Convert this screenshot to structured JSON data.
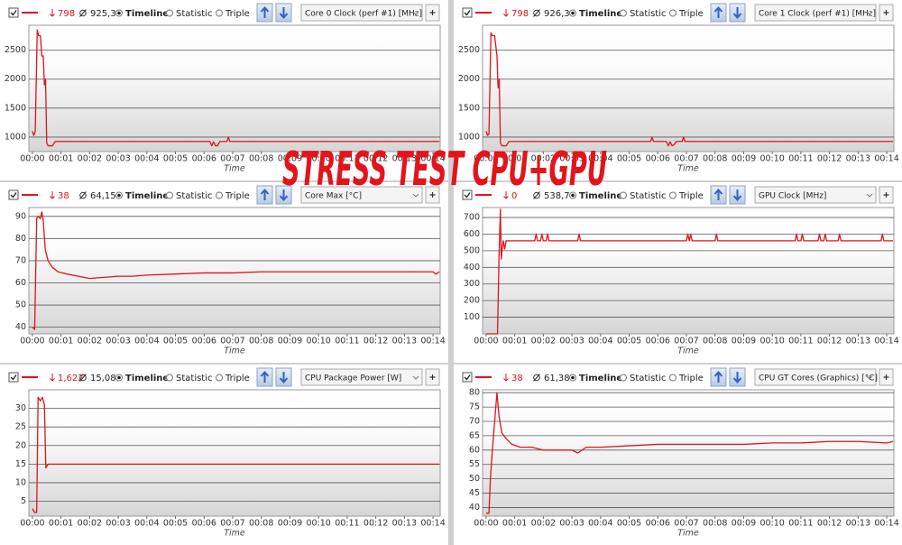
{
  "modes": [
    "Timeline",
    "Statistic",
    "Triple"
  ],
  "overlay": "STRESS TEST CPU+GPU",
  "chart_data": [
    {
      "type": "line",
      "title": "Core 0 Clock (perf #1) [MHz]",
      "min": "798",
      "avg": "925,3",
      "xlabel": "Time",
      "color": "#e0141b",
      "grid": true,
      "xlim": [
        -0.06,
        14.25
      ],
      "ylim": [
        750,
        2930
      ],
      "yticks": [
        1000,
        1500,
        2000,
        2500
      ],
      "xticks": [
        {
          "value": 0,
          "label": "00:00"
        },
        {
          "value": 1,
          "label": "00:01"
        },
        {
          "value": 2,
          "label": "00:02"
        },
        {
          "value": 3,
          "label": "00:03"
        },
        {
          "value": 4,
          "label": "00:04"
        },
        {
          "value": 5,
          "label": "00:05"
        },
        {
          "value": 6,
          "label": "00:06"
        },
        {
          "value": 7,
          "label": "00:07"
        },
        {
          "value": 8,
          "label": "00:08"
        },
        {
          "value": 9,
          "label": "00:09"
        },
        {
          "value": 10,
          "label": "00:10"
        },
        {
          "value": 11,
          "label": "00:11"
        },
        {
          "value": 12,
          "label": "00:12"
        },
        {
          "value": 13,
          "label": "00:13"
        },
        {
          "value": 14,
          "label": "00:14"
        }
      ],
      "x": [
        0,
        0.05,
        0.1,
        0.17,
        0.22,
        0.28,
        0.33,
        0.38,
        0.42,
        0.46,
        0.5,
        0.55,
        0.7,
        0.8,
        0.9,
        6.2,
        6.27,
        6.33,
        6.4,
        6.47,
        6.55,
        6.8,
        6.85,
        6.9,
        14.22
      ],
      "values": [
        1100,
        1030,
        1100,
        2850,
        2750,
        2750,
        2400,
        2400,
        1900,
        2000,
        900,
        850,
        850,
        925,
        925,
        925,
        850,
        920,
        850,
        850,
        925,
        925,
        1000,
        925,
        925
      ]
    },
    {
      "type": "line",
      "title": "Core 1 Clock (perf #1) [MHz]",
      "min": "798",
      "avg": "926,3",
      "xlabel": "Time",
      "color": "#e0141b",
      "grid": true,
      "xlim": [
        -0.06,
        14.25
      ],
      "ylim": [
        750,
        2930
      ],
      "yticks": [
        1000,
        1500,
        2000,
        2500
      ],
      "xticks": [
        {
          "value": 0,
          "label": "00:00"
        },
        {
          "value": 1,
          "label": "00:01"
        },
        {
          "value": 2,
          "label": "00:02"
        },
        {
          "value": 3,
          "label": "00:03"
        },
        {
          "value": 4,
          "label": "00:04"
        },
        {
          "value": 5,
          "label": "00:05"
        },
        {
          "value": 6,
          "label": "00:06"
        },
        {
          "value": 7,
          "label": "00:07"
        },
        {
          "value": 8,
          "label": "00:08"
        },
        {
          "value": 9,
          "label": "00:09"
        },
        {
          "value": 10,
          "label": "00:10"
        },
        {
          "value": 11,
          "label": "00:11"
        },
        {
          "value": 12,
          "label": "00:12"
        },
        {
          "value": 13,
          "label": "00:13"
        },
        {
          "value": 14,
          "label": "00:14"
        }
      ],
      "x": [
        0,
        0.05,
        0.1,
        0.17,
        0.22,
        0.3,
        0.38,
        0.42,
        0.46,
        0.5,
        0.55,
        0.7,
        0.8,
        0.9,
        5.75,
        5.8,
        5.85,
        6.3,
        6.37,
        6.43,
        6.5,
        6.57,
        6.65,
        6.85,
        6.9,
        6.95,
        14.22
      ],
      "values": [
        1100,
        1030,
        1050,
        2800,
        2750,
        2750,
        2400,
        1850,
        2000,
        900,
        850,
        850,
        925,
        925,
        925,
        1000,
        925,
        925,
        850,
        920,
        850,
        870,
        925,
        925,
        1000,
        925,
        925
      ]
    },
    {
      "type": "line",
      "title": "Core Max [°C]",
      "min": "38",
      "avg": "64,15",
      "xlabel": "Time",
      "color": "#e0141b",
      "grid": true,
      "xlim": [
        -0.06,
        14.25
      ],
      "ylim": [
        37,
        94
      ],
      "yticks": [
        40,
        50,
        60,
        70,
        80,
        90
      ],
      "xticks": [
        {
          "value": 0,
          "label": "00:00"
        },
        {
          "value": 1,
          "label": "00:01"
        },
        {
          "value": 2,
          "label": "00:02"
        },
        {
          "value": 3,
          "label": "00:03"
        },
        {
          "value": 4,
          "label": "00:04"
        },
        {
          "value": 5,
          "label": "00:05"
        },
        {
          "value": 6,
          "label": "00:06"
        },
        {
          "value": 7,
          "label": "00:07"
        },
        {
          "value": 8,
          "label": "00:08"
        },
        {
          "value": 9,
          "label": "00:09"
        },
        {
          "value": 10,
          "label": "00:10"
        },
        {
          "value": 11,
          "label": "00:11"
        },
        {
          "value": 12,
          "label": "00:12"
        },
        {
          "value": 13,
          "label": "00:13"
        },
        {
          "value": 14,
          "label": "00:14"
        }
      ],
      "x": [
        0,
        0.08,
        0.15,
        0.2,
        0.28,
        0.33,
        0.38,
        0.45,
        0.55,
        0.7,
        0.9,
        1.2,
        1.6,
        2,
        2.5,
        3,
        3.5,
        4,
        5,
        6,
        7,
        8,
        9,
        10,
        11,
        12,
        13,
        14,
        14.1,
        14.22
      ],
      "values": [
        40,
        39,
        89,
        90,
        89,
        92,
        88,
        75,
        70,
        67,
        65,
        64,
        63,
        62,
        62.5,
        63,
        63,
        63.5,
        64,
        64.5,
        64.5,
        65,
        65,
        65,
        65,
        65,
        65,
        65,
        64,
        65
      ]
    },
    {
      "type": "line",
      "title": "GPU Clock [MHz]",
      "min": "0",
      "avg": "538,7",
      "xlabel": "Time",
      "color": "#e0141b",
      "grid": true,
      "xlim": [
        -0.06,
        14.25
      ],
      "ylim": [
        0,
        760
      ],
      "yticks": [
        100,
        200,
        300,
        400,
        500,
        600,
        700
      ],
      "xticks": [
        {
          "value": 0,
          "label": "00:00"
        },
        {
          "value": 1,
          "label": "00:01"
        },
        {
          "value": 2,
          "label": "00:02"
        },
        {
          "value": 3,
          "label": "00:03"
        },
        {
          "value": 4,
          "label": "00:04"
        },
        {
          "value": 5,
          "label": "00:05"
        },
        {
          "value": 6,
          "label": "00:06"
        },
        {
          "value": 7,
          "label": "00:07"
        },
        {
          "value": 8,
          "label": "00:08"
        },
        {
          "value": 9,
          "label": "00:09"
        },
        {
          "value": 10,
          "label": "00:10"
        },
        {
          "value": 11,
          "label": "00:11"
        },
        {
          "value": 12,
          "label": "00:12"
        },
        {
          "value": 13,
          "label": "00:13"
        },
        {
          "value": 14,
          "label": "00:14"
        }
      ],
      "x": [
        0,
        0.4,
        0.45,
        0.5,
        0.53,
        0.57,
        0.6,
        0.65,
        0.7,
        1.7,
        1.75,
        1.8,
        1.9,
        1.95,
        2,
        2.1,
        2.15,
        2.2,
        3.2,
        3.25,
        3.3,
        7,
        7.05,
        7.1,
        7.15,
        7.2,
        7.25,
        8,
        8.05,
        8.1,
        10.8,
        10.85,
        10.9,
        11.0,
        11.05,
        11.1,
        11.6,
        11.65,
        11.7,
        11.8,
        11.85,
        11.9,
        12.3,
        12.35,
        12.4,
        13.8,
        13.85,
        13.9,
        14.22
      ],
      "values": [
        0,
        0,
        450,
        750,
        450,
        520,
        560,
        510,
        560,
        560,
        600,
        560,
        560,
        600,
        560,
        560,
        600,
        560,
        560,
        600,
        560,
        560,
        600,
        560,
        600,
        560,
        560,
        560,
        600,
        560,
        560,
        600,
        560,
        560,
        600,
        560,
        560,
        600,
        560,
        560,
        600,
        560,
        560,
        600,
        560,
        560,
        600,
        560,
        560
      ]
    },
    {
      "type": "line",
      "title": "CPU Package Power [W]",
      "min": "1,622",
      "avg": "15,08",
      "xlabel": "Time",
      "color": "#e0141b",
      "grid": true,
      "xlim": [
        -0.06,
        14.25
      ],
      "ylim": [
        1,
        35
      ],
      "yticks": [
        5,
        10,
        15,
        20,
        25,
        30
      ],
      "xticks": [
        {
          "value": 0,
          "label": "00:00"
        },
        {
          "value": 1,
          "label": "00:01"
        },
        {
          "value": 2,
          "label": "00:02"
        },
        {
          "value": 3,
          "label": "00:03"
        },
        {
          "value": 4,
          "label": "00:04"
        },
        {
          "value": 5,
          "label": "00:05"
        },
        {
          "value": 6,
          "label": "00:06"
        },
        {
          "value": 7,
          "label": "00:07"
        },
        {
          "value": 8,
          "label": "00:08"
        },
        {
          "value": 9,
          "label": "00:09"
        },
        {
          "value": 10,
          "label": "00:10"
        },
        {
          "value": 11,
          "label": "00:11"
        },
        {
          "value": 12,
          "label": "00:12"
        },
        {
          "value": 13,
          "label": "00:13"
        },
        {
          "value": 14,
          "label": "00:14"
        }
      ],
      "x": [
        0,
        0.08,
        0.15,
        0.2,
        0.28,
        0.35,
        0.42,
        0.47,
        0.55,
        0.7,
        14.22
      ],
      "values": [
        3,
        2,
        2,
        33,
        32,
        33,
        31,
        14,
        15,
        15,
        15
      ]
    },
    {
      "type": "line",
      "title": "CPU GT Cores (Graphics) [°C]",
      "min": "38",
      "avg": "61,38",
      "xlabel": "Time",
      "color": "#e0141b",
      "grid": true,
      "xlim": [
        -0.06,
        14.25
      ],
      "ylim": [
        37,
        81
      ],
      "yticks": [
        40,
        45,
        50,
        55,
        60,
        65,
        70,
        75,
        80
      ],
      "xticks": [
        {
          "value": 0,
          "label": "00:00"
        },
        {
          "value": 1,
          "label": "00:01"
        },
        {
          "value": 2,
          "label": "00:02"
        },
        {
          "value": 3,
          "label": "00:03"
        },
        {
          "value": 4,
          "label": "00:04"
        },
        {
          "value": 5,
          "label": "00:05"
        },
        {
          "value": 6,
          "label": "00:06"
        },
        {
          "value": 7,
          "label": "00:07"
        },
        {
          "value": 8,
          "label": "00:08"
        },
        {
          "value": 9,
          "label": "00:09"
        },
        {
          "value": 10,
          "label": "00:10"
        },
        {
          "value": 11,
          "label": "00:11"
        },
        {
          "value": 12,
          "label": "00:12"
        },
        {
          "value": 13,
          "label": "00:13"
        },
        {
          "value": 14,
          "label": "00:14"
        }
      ],
      "x": [
        0,
        0.1,
        0.15,
        0.22,
        0.3,
        0.38,
        0.45,
        0.55,
        0.7,
        0.9,
        1.2,
        1.6,
        2,
        2.5,
        3,
        3.2,
        3.5,
        4,
        5,
        6,
        7,
        8,
        9,
        10,
        11,
        12,
        13,
        14,
        14.22
      ],
      "values": [
        38,
        38,
        50,
        60,
        70,
        80,
        72,
        66,
        64,
        62,
        61,
        61,
        60,
        60,
        60,
        59,
        61,
        61,
        61.5,
        62,
        62,
        62,
        62,
        62.5,
        62.5,
        63,
        63,
        62.5,
        63
      ]
    }
  ]
}
